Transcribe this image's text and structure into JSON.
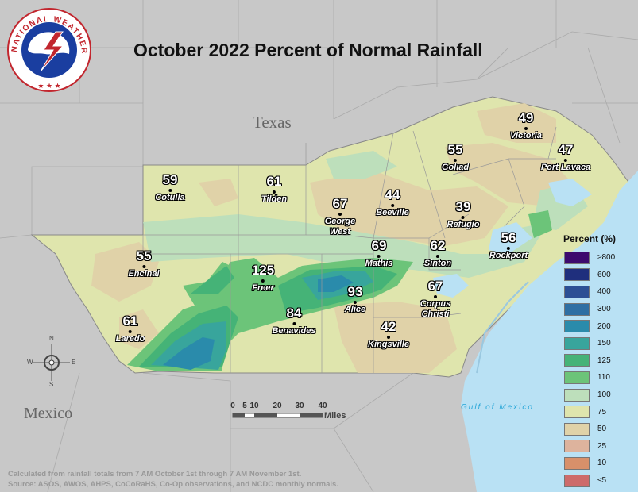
{
  "title": "October 2022 Percent of Normal Rainfall",
  "labels": {
    "texas": "Texas",
    "mexico": "Mexico",
    "gulf": "Gulf of Mexico"
  },
  "logo": {
    "text": "NATIONAL WEATHER SERVICE",
    "icon": "nws-logo-icon"
  },
  "stations": [
    {
      "name": "Victoria",
      "value": "49"
    },
    {
      "name": "Goliad",
      "value": "55"
    },
    {
      "name": "Port Lavaca",
      "value": "47"
    },
    {
      "name": "Cotulla",
      "value": "59"
    },
    {
      "name": "Tilden",
      "value": "61"
    },
    {
      "name": "George West",
      "value": "67"
    },
    {
      "name": "Beeville",
      "value": "44"
    },
    {
      "name": "Refugio",
      "value": "39"
    },
    {
      "name": "Encinal",
      "value": "55"
    },
    {
      "name": "Mathis",
      "value": "69"
    },
    {
      "name": "Sinton",
      "value": "62"
    },
    {
      "name": "Rockport",
      "value": "56"
    },
    {
      "name": "Freer",
      "value": "125"
    },
    {
      "name": "Corpus Christi",
      "value": "67"
    },
    {
      "name": "Alice",
      "value": "93"
    },
    {
      "name": "Laredo",
      "value": "61"
    },
    {
      "name": "Benavides",
      "value": "84"
    },
    {
      "name": "Kingsville",
      "value": "42"
    }
  ],
  "legend": {
    "title": "Percent (%)",
    "items": [
      {
        "label": "≥800",
        "color": "#3d0a6e"
      },
      {
        "label": "600",
        "color": "#1f2f7d"
      },
      {
        "label": "400",
        "color": "#2c4f94"
      },
      {
        "label": "300",
        "color": "#2f6fa3"
      },
      {
        "label": "200",
        "color": "#2a8bab"
      },
      {
        "label": "150",
        "color": "#38a59c"
      },
      {
        "label": "125",
        "color": "#45b377"
      },
      {
        "label": "110",
        "color": "#6cc479"
      },
      {
        "label": "100",
        "color": "#bddfbb"
      },
      {
        "label": "75",
        "color": "#dfe5ad"
      },
      {
        "label": "50",
        "color": "#e0d2a8"
      },
      {
        "label": "25",
        "color": "#ddb39d"
      },
      {
        "label": "10",
        "color": "#d8906a"
      },
      {
        "label": "≤5",
        "color": "#cd6b6b"
      }
    ]
  },
  "scale": {
    "ticks": [
      "0",
      "5",
      "10",
      "20",
      "30",
      "40"
    ],
    "unit": "Miles"
  },
  "compass": {
    "n": "N",
    "s": "S",
    "e": "E",
    "w": "W"
  },
  "credits": [
    "Calculated from rainfall totals from 7 AM October 1st through 7 AM November 1st.",
    "Source: ASOS, AWOS, AHPS, CoCoRaHS, Co-Op observations, and NCDC monthly normals."
  ]
}
